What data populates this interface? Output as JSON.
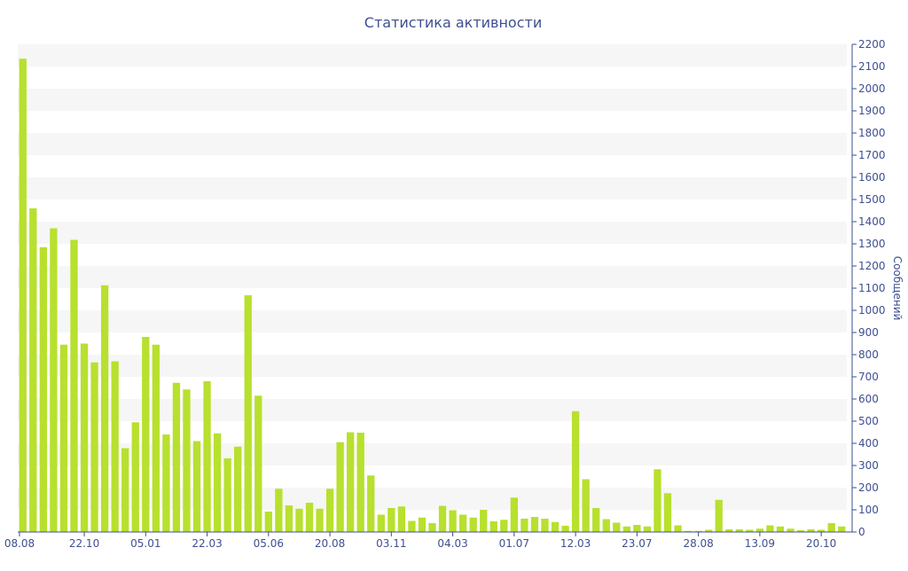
{
  "chart_data": {
    "type": "bar",
    "title": "Статистика активности",
    "xlabel": "",
    "ylabel": "Сообщений",
    "ylim": [
      0,
      2200
    ],
    "ytick_step": 100,
    "x_tick_labels": [
      "08.08",
      "22.10",
      "05.01",
      "22.03",
      "05.06",
      "20.08",
      "03.11",
      "04.03",
      "01.07",
      "12.03",
      "23.07",
      "28.08",
      "13.09",
      "20.10"
    ],
    "grid": "alternating horizontal bands",
    "legend": "none",
    "colors": {
      "bar": "#b8e02e",
      "band": "#f6f6f6",
      "axis": "#3e4f8f",
      "title": "#3e4f8f"
    },
    "values": [
      2135,
      1460,
      1285,
      1370,
      845,
      1318,
      850,
      765,
      1113,
      770,
      378,
      495,
      880,
      845,
      440,
      673,
      643,
      410,
      680,
      445,
      332,
      385,
      1068,
      615,
      92,
      195,
      120,
      105,
      132,
      105,
      195,
      405,
      450,
      448,
      255,
      78,
      108,
      115,
      50,
      65,
      40,
      118,
      98,
      78,
      65,
      100,
      48,
      55,
      155,
      60,
      68,
      60,
      45,
      28,
      545,
      238,
      108,
      58,
      42,
      25,
      32,
      25,
      283,
      175,
      30,
      5,
      5,
      10,
      145,
      12,
      12,
      10,
      15,
      30,
      25,
      15,
      8,
      12,
      10,
      40,
      25
    ]
  }
}
